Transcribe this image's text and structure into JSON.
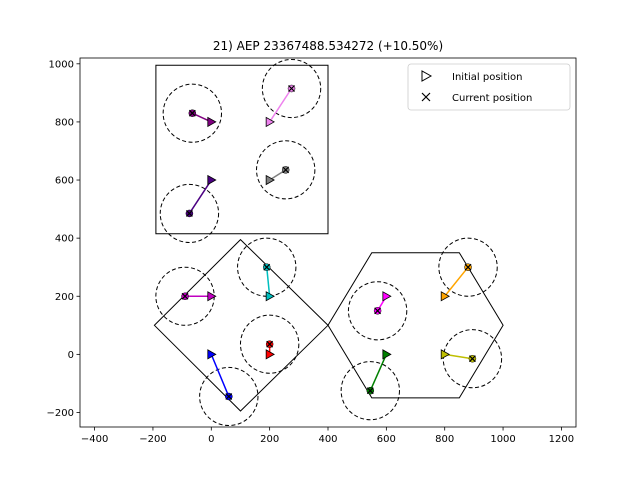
{
  "chart_data": {
    "type": "scatter",
    "title": "21) AEP 23367488.534272  (+10.50%)",
    "xlabel": "",
    "ylabel": "",
    "xlim": [
      -450,
      1250
    ],
    "ylim": [
      -250,
      1020
    ],
    "grid": false,
    "x_ticks": [
      -400,
      -200,
      0,
      200,
      400,
      600,
      800,
      1000,
      1200
    ],
    "x_tick_labels": [
      "−400",
      "−200",
      "0",
      "200",
      "400",
      "600",
      "800",
      "1000",
      "1200"
    ],
    "y_ticks": [
      -200,
      0,
      200,
      400,
      600,
      800,
      1000
    ],
    "y_tick_labels": [
      "−200",
      "0",
      "200",
      "400",
      "600",
      "800",
      "1000"
    ],
    "legend": {
      "placement": "top-right",
      "entries": [
        {
          "label": "Initial position",
          "marker": "triangle-right"
        },
        {
          "label": "Current position",
          "marker": "x"
        }
      ]
    },
    "boundaries": [
      {
        "shape": "rectangle",
        "points": [
          [
            -190,
            415
          ],
          [
            400,
            415
          ],
          [
            400,
            995
          ],
          [
            -190,
            995
          ]
        ]
      },
      {
        "shape": "square",
        "points": [
          [
            100,
            395
          ],
          [
            400,
            100
          ],
          [
            100,
            -195
          ],
          [
            -195,
            100
          ]
        ]
      },
      {
        "shape": "hexagon",
        "points": [
          [
            550,
            350
          ],
          [
            850,
            350
          ],
          [
            1000,
            100
          ],
          [
            850,
            -150
          ],
          [
            550,
            -150
          ],
          [
            400,
            100
          ]
        ]
      }
    ],
    "circle_radius": 100,
    "turbines": [
      {
        "color": "#800080",
        "initial": [
          0,
          800
        ],
        "current": [
          -65,
          830
        ]
      },
      {
        "color": "#ee82ee",
        "initial": [
          200,
          800
        ],
        "current": [
          275,
          915
        ]
      },
      {
        "color": "#808080",
        "initial": [
          200,
          600
        ],
        "current": [
          255,
          635
        ]
      },
      {
        "color": "#4b0082",
        "initial": [
          0,
          600
        ],
        "current": [
          -75,
          485
        ]
      },
      {
        "color": "#c000c0",
        "initial": [
          0,
          200
        ],
        "current": [
          -90,
          200
        ]
      },
      {
        "color": "#00bfbf",
        "initial": [
          200,
          200
        ],
        "current": [
          190,
          300
        ]
      },
      {
        "color": "#ff0000",
        "initial": [
          200,
          0
        ],
        "current": [
          200,
          35
        ]
      },
      {
        "color": "#0000ff",
        "initial": [
          0,
          0
        ],
        "current": [
          60,
          -145
        ]
      },
      {
        "color": "#ff00ff",
        "initial": [
          600,
          200
        ],
        "current": [
          570,
          150
        ]
      },
      {
        "color": "#ffa500",
        "initial": [
          800,
          200
        ],
        "current": [
          880,
          300
        ]
      },
      {
        "color": "#008000",
        "initial": [
          600,
          0
        ],
        "current": [
          545,
          -125
        ]
      },
      {
        "color": "#bfbf00",
        "initial": [
          800,
          0
        ],
        "current": [
          895,
          -15
        ]
      }
    ]
  }
}
